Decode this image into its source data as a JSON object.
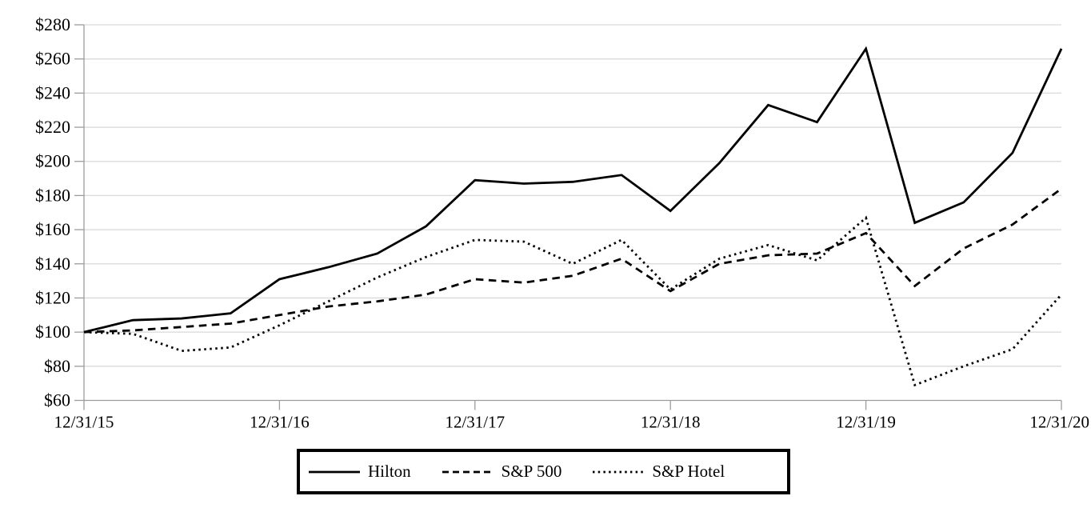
{
  "chart_data": {
    "type": "line",
    "title": "",
    "x_tick_labels": [
      "12/31/15",
      "12/31/16",
      "12/31/17",
      "12/31/18",
      "12/31/19",
      "12/31/20"
    ],
    "points_per_year": 4,
    "ylim": [
      60,
      280
    ],
    "y_tick_step": 20,
    "y_tick_prefix": "$",
    "y_tick_labels": [
      "$60",
      "$80",
      "$100",
      "$120",
      "$140",
      "$160",
      "$180",
      "$200",
      "$220",
      "$240",
      "$260",
      "$280"
    ],
    "grid": "horizontal-only",
    "legend_position": "bottom",
    "colors": {
      "series": "#000000",
      "grid": "#d9d9d9",
      "axis": "#9c9c9c",
      "text": "#000000",
      "background": "#ffffff"
    },
    "line_styles": {
      "solid": {
        "dash": "",
        "legend_dash": ""
      },
      "dashed": {
        "dash": "9.5 6.5",
        "legend_dash": "8 5"
      },
      "dotted": {
        "dash": "2.5 4.5",
        "legend_dash": "2.5 4.2"
      }
    },
    "series": [
      {
        "name": "Hilton",
        "style": "solid",
        "values": [
          100,
          107,
          108,
          111,
          131,
          138,
          146,
          162,
          189,
          187,
          188,
          192,
          171,
          199,
          233,
          223,
          266,
          164,
          176,
          205,
          266
        ]
      },
      {
        "name": "S&P 500",
        "style": "dashed",
        "values": [
          100,
          101,
          103,
          105,
          110,
          115,
          118,
          122,
          131,
          129,
          133,
          143,
          124,
          140,
          145,
          146,
          158,
          127,
          149,
          163,
          184
        ]
      },
      {
        "name": "S&P Hotel",
        "style": "dotted",
        "values": [
          100,
          99,
          89,
          91,
          104,
          118,
          132,
          144,
          154,
          153,
          140,
          154,
          125,
          143,
          151,
          142,
          167,
          69,
          80,
          90,
          122
        ]
      }
    ]
  }
}
